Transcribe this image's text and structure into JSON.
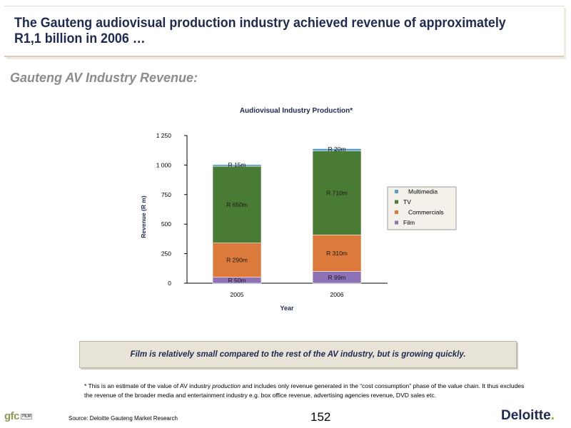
{
  "header": {
    "title": "The Gauteng audiovisual production industry achieved revenue of approximately R1,1 billion in 2006 …"
  },
  "section_title": "Gauteng AV Industry Revenue:",
  "chart_data": {
    "type": "bar",
    "stacked": true,
    "title": "Audiovisual Industry Production*",
    "xlabel": "Year",
    "ylabel": "Revenue (R m)",
    "ylim": [
      0,
      1250
    ],
    "yticks": [
      0,
      250,
      500,
      750,
      1000,
      1250
    ],
    "ytick_labels": [
      "0",
      "250",
      "500",
      "750",
      "1 000",
      "1 250"
    ],
    "categories": [
      "2005",
      "2006"
    ],
    "series": [
      {
        "name": "Film",
        "values": [
          50,
          99
        ],
        "labels": [
          "R 50m",
          "R 99m"
        ],
        "color": "#8e72b8"
      },
      {
        "name": "Commercials",
        "values": [
          290,
          310
        ],
        "labels": [
          "R 290m",
          "R 310m"
        ],
        "color": "#dc7a3c"
      },
      {
        "name": "TV",
        "values": [
          650,
          710
        ],
        "labels": [
          "R 650m",
          "R 710m"
        ],
        "color": "#4a7b35"
      },
      {
        "name": "Multimedia",
        "values": [
          15,
          20
        ],
        "labels": [
          "R 15m",
          "R 20m"
        ],
        "color": "#5b9ec4"
      }
    ],
    "legend": {
      "placement": "right",
      "order": [
        "Multimedia",
        "TV",
        "Commercials",
        "Film"
      ]
    },
    "grid": false
  },
  "callout": "Film is relatively small compared to the rest of the AV industry, but is growing quickly.",
  "footnote": {
    "part1": "* This is an estimate of the value of AV industry ",
    "italic": "production",
    "part2": " and includes only revenue generated in the “cost consumption” phase of the value chain. It thus excludes the revenue of the broader media and entertainment industry e.g. box office revenue, advertising agencies revenue, DVD sales etc."
  },
  "footer": {
    "source": "Source: Deloitte Gauteng Market Research",
    "page_number": "152",
    "gfc_logo": "gfc",
    "gfc_sub": "FILM",
    "deloitte_logo": "Deloitte",
    "deloitte_dot": "."
  }
}
